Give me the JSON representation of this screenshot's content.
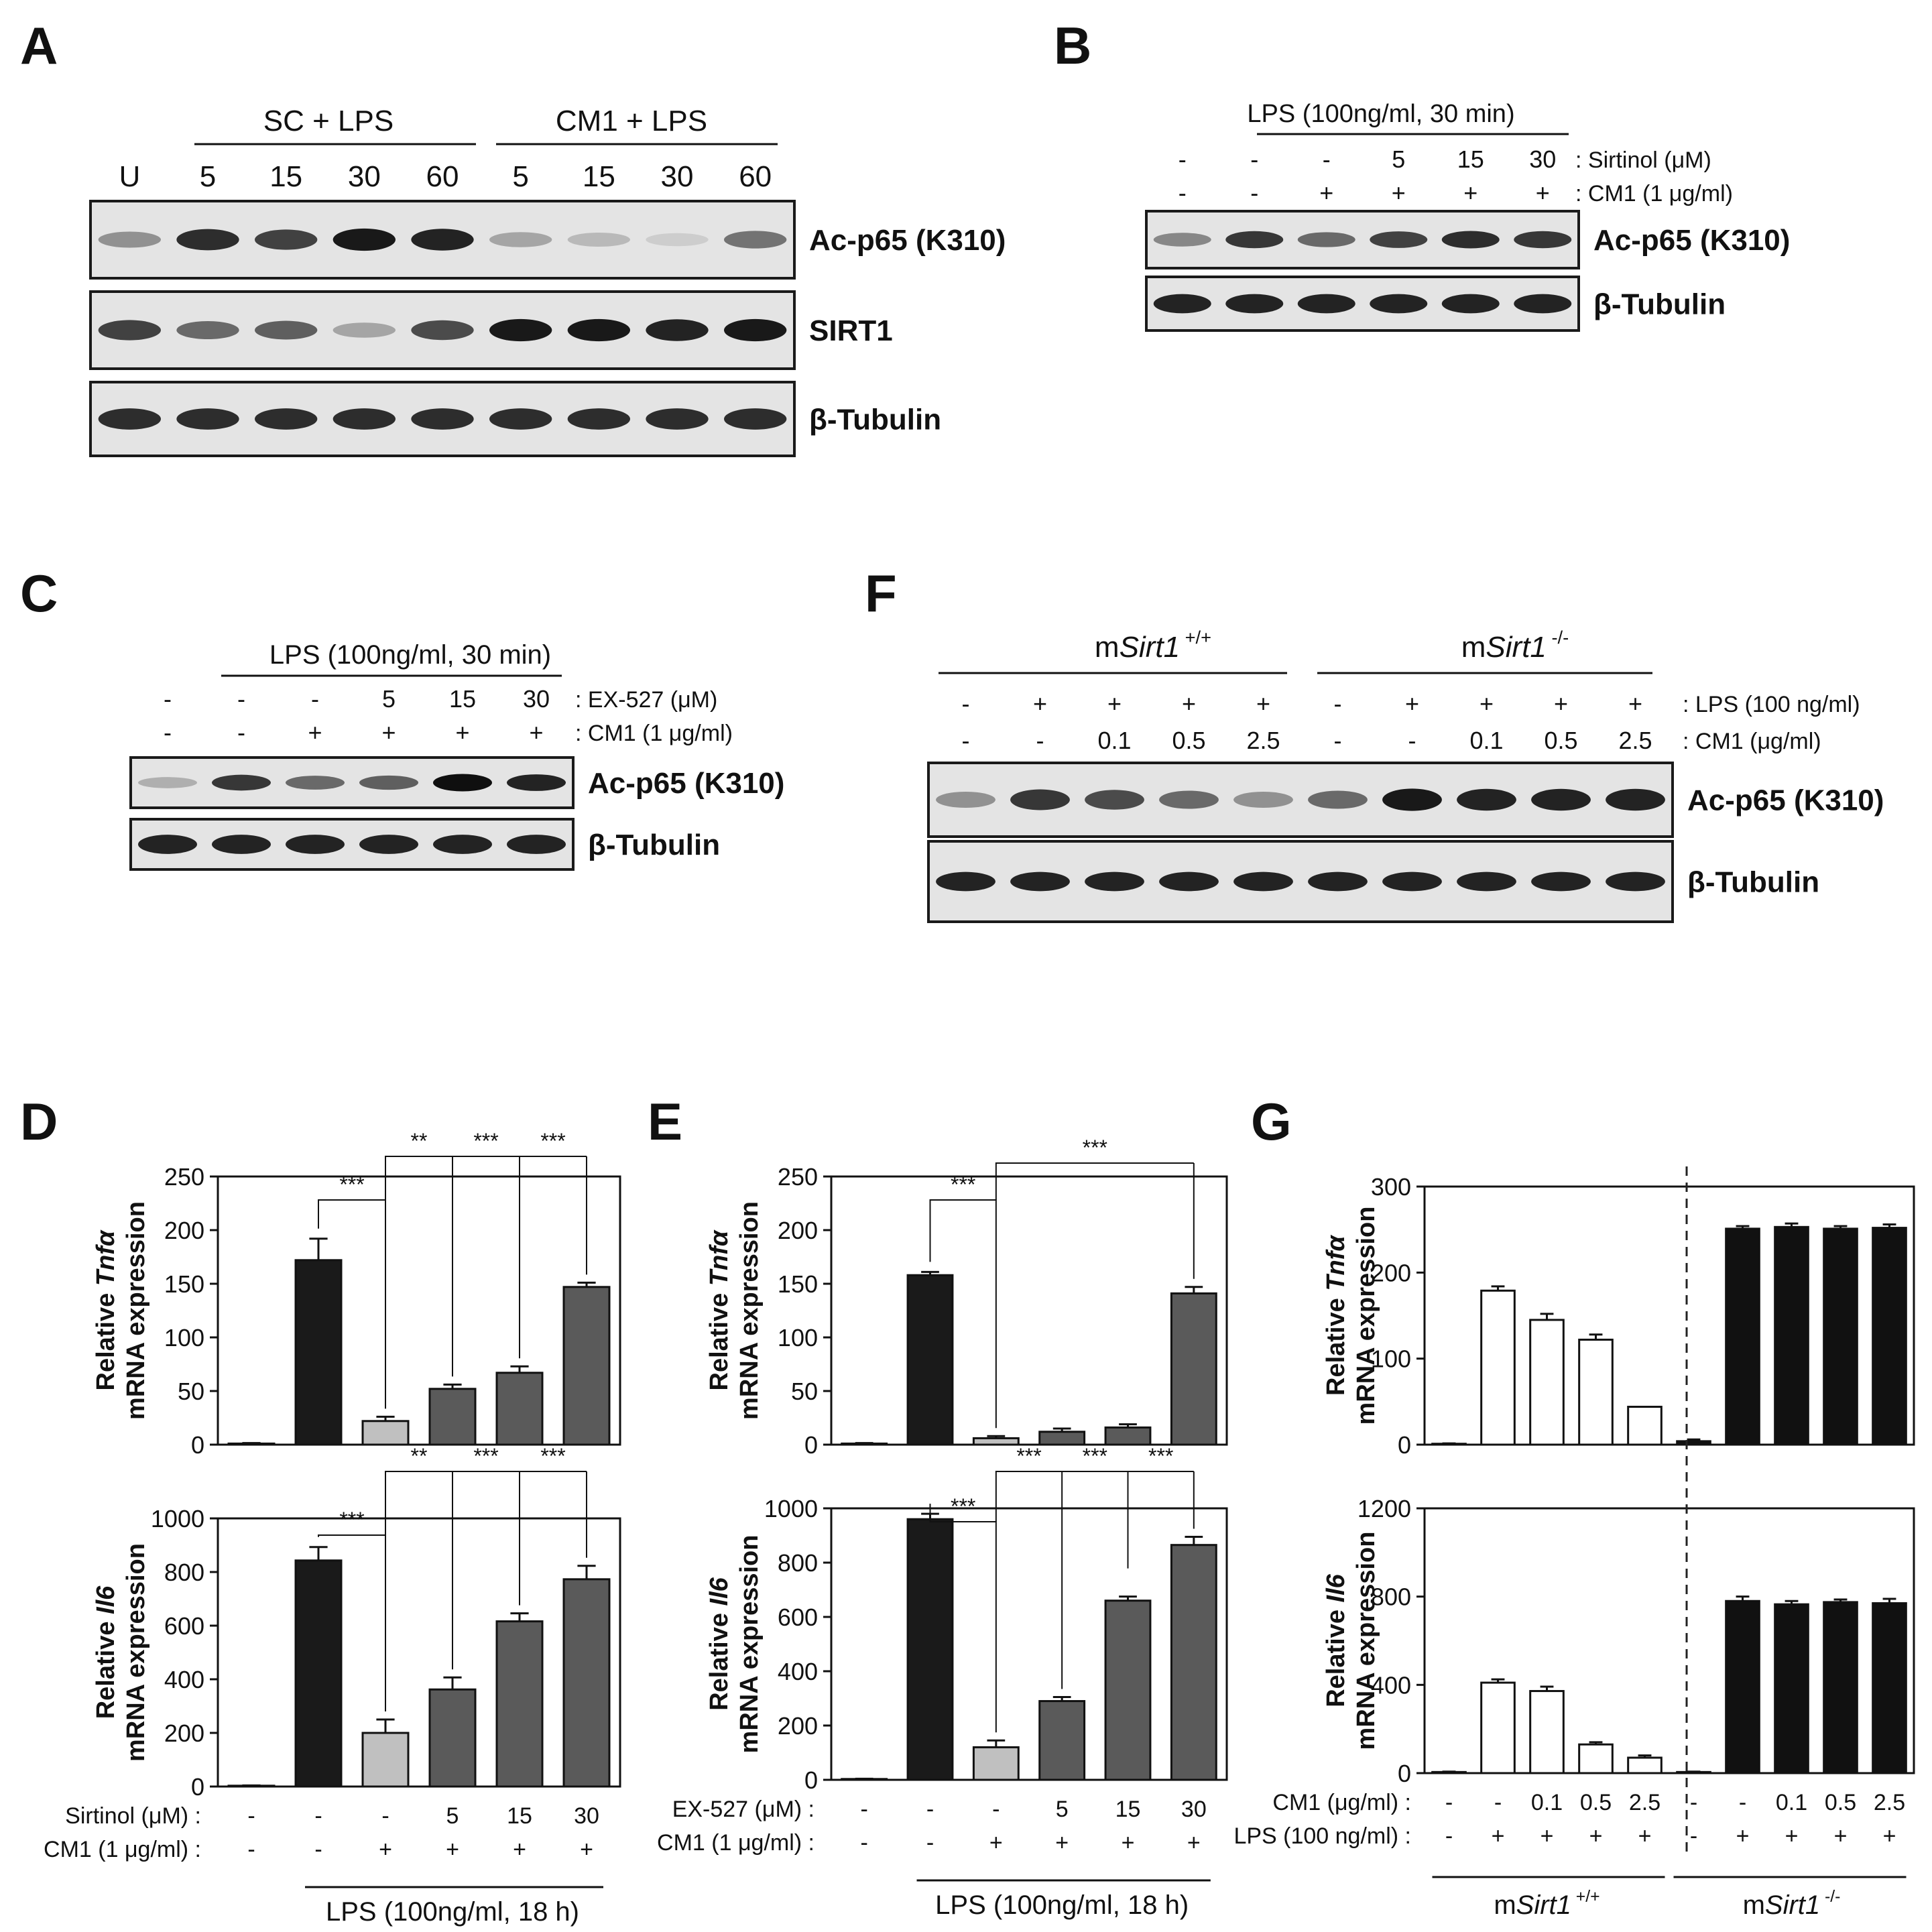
{
  "panels": {
    "A": {
      "letter": "A",
      "groups": [
        "SC + LPS",
        "CM1 + LPS"
      ],
      "lanes": [
        "U",
        "5",
        "15",
        "30",
        "60",
        "5",
        "15",
        "30",
        "60"
      ],
      "blots": [
        {
          "label": "Ac-p65 (K310)",
          "intensity": [
            0.35,
            0.85,
            0.75,
            0.95,
            0.9,
            0.25,
            0.15,
            0.05,
            0.5
          ]
        },
        {
          "label": "SIRT1",
          "intensity": [
            0.75,
            0.55,
            0.6,
            0.25,
            0.7,
            0.95,
            0.95,
            0.9,
            0.95
          ]
        },
        {
          "label": "β-Tubulin",
          "intensity": [
            0.85,
            0.85,
            0.85,
            0.85,
            0.85,
            0.85,
            0.85,
            0.85,
            0.85
          ]
        }
      ]
    },
    "B": {
      "letter": "B",
      "header": "LPS (100ng/ml, 30 min)",
      "rows": [
        {
          "label": ": Sirtinol (μM)",
          "values": [
            "-",
            "-",
            "-",
            "5",
            "15",
            "30"
          ]
        },
        {
          "label": ": CM1 (1 μg/ml)",
          "values": [
            "-",
            "-",
            "+",
            "+",
            "+",
            "+"
          ]
        }
      ],
      "blots": [
        {
          "label": "Ac-p65 (K310)",
          "intensity": [
            0.4,
            0.8,
            0.55,
            0.75,
            0.85,
            0.8
          ]
        },
        {
          "label": "β-Tubulin",
          "intensity": [
            0.9,
            0.9,
            0.9,
            0.9,
            0.9,
            0.9
          ]
        }
      ]
    },
    "C": {
      "letter": "C",
      "header": "LPS (100ng/ml, 30 min)",
      "rows": [
        {
          "label": ": EX-527 (μM)",
          "values": [
            "-",
            "-",
            "-",
            "5",
            "15",
            "30"
          ]
        },
        {
          "label": ": CM1 (1 μg/ml)",
          "values": [
            "-",
            "-",
            "+",
            "+",
            "+",
            "+"
          ]
        }
      ],
      "blots": [
        {
          "label": "Ac-p65 (K310)",
          "intensity": [
            0.2,
            0.8,
            0.55,
            0.6,
            1.0,
            0.9
          ]
        },
        {
          "label": "β-Tubulin",
          "intensity": [
            0.9,
            0.9,
            0.9,
            0.9,
            0.9,
            0.9
          ]
        }
      ]
    },
    "F": {
      "letter": "F",
      "groups": [
        {
          "prefix": "m",
          "gene": "Sirt1",
          "sup": " +/+"
        },
        {
          "prefix": "m",
          "gene": "Sirt1",
          "sup": " -/-"
        }
      ],
      "rows": [
        {
          "label": ": LPS (100 ng/ml)",
          "values": [
            "-",
            "+",
            "+",
            "+",
            "+",
            "-",
            "+",
            "+",
            "+",
            "+"
          ]
        },
        {
          "label": ": CM1 (μg/ml)",
          "values": [
            "-",
            "-",
            "0.1",
            "0.5",
            "2.5",
            "-",
            "-",
            "0.1",
            "0.5",
            "2.5"
          ]
        }
      ],
      "blots": [
        {
          "label": "Ac-p65 (K310)",
          "intensity": [
            0.35,
            0.8,
            0.7,
            0.55,
            0.35,
            0.55,
            0.95,
            0.9,
            0.9,
            0.9
          ]
        },
        {
          "label": "β-Tubulin",
          "intensity": [
            0.9,
            0.9,
            0.9,
            0.9,
            0.9,
            0.9,
            0.9,
            0.9,
            0.9,
            0.9
          ]
        }
      ]
    },
    "D": {
      "letter": "D"
    },
    "E": {
      "letter": "E"
    },
    "G": {
      "letter": "G"
    }
  },
  "chart_data": [
    {
      "panel": "D",
      "type": "bar",
      "ylabel_pre": "Relative ",
      "ylabel_gene": "Tnfα",
      "ylabel2": "mRNA expression",
      "ylim": [
        0,
        250
      ],
      "yticks": [
        0,
        50,
        100,
        150,
        200,
        250
      ],
      "values": [
        1,
        172,
        22,
        52,
        67,
        147
      ],
      "errors": [
        0.5,
        20,
        4,
        4,
        6,
        4
      ],
      "colors": [
        "#2b2b2b",
        "#1a1a1a",
        "#c0c0c0",
        "#5a5a5a",
        "#5a5a5a",
        "#5a5a5a"
      ],
      "significance": [
        "***",
        "**",
        "***",
        "***"
      ]
    },
    {
      "panel": "D",
      "type": "bar",
      "ylabel_pre": "Relative ",
      "ylabel_gene": "Il6",
      "ylabel2": "mRNA expression",
      "ylim": [
        0,
        1000
      ],
      "yticks": [
        0,
        200,
        400,
        600,
        800,
        1000
      ],
      "values": [
        3,
        843,
        200,
        362,
        616,
        773
      ],
      "errors": [
        1,
        50,
        50,
        45,
        30,
        50
      ],
      "colors": [
        "#2b2b2b",
        "#1a1a1a",
        "#c0c0c0",
        "#5a5a5a",
        "#5a5a5a",
        "#5a5a5a"
      ],
      "significance": [
        "***",
        "**",
        "***",
        "***"
      ],
      "xrows": [
        {
          "label": "Sirtinol (μM) :",
          "values": [
            "-",
            "-",
            "-",
            "5",
            "15",
            "30"
          ]
        },
        {
          "label": "CM1 (1 μg/ml) :",
          "values": [
            "-",
            "-",
            "+",
            "+",
            "+",
            "+"
          ]
        }
      ],
      "footer": "LPS (100ng/ml, 18 h)"
    },
    {
      "panel": "E",
      "type": "bar",
      "ylabel_pre": "Relative ",
      "ylabel_gene": "Tnfα",
      "ylabel2": "mRNA expression",
      "ylim": [
        0,
        250
      ],
      "yticks": [
        0,
        50,
        100,
        150,
        200,
        250
      ],
      "values": [
        1,
        158,
        6,
        12,
        16,
        141
      ],
      "errors": [
        0.5,
        3,
        2,
        3,
        3,
        6
      ],
      "colors": [
        "#2b2b2b",
        "#1a1a1a",
        "#c0c0c0",
        "#5a5a5a",
        "#5a5a5a",
        "#5a5a5a"
      ],
      "significance": [
        "***",
        "***"
      ]
    },
    {
      "panel": "E",
      "type": "bar",
      "ylabel_pre": "Relative ",
      "ylabel_gene": "Il6",
      "ylabel2": "mRNA expression",
      "ylim": [
        0,
        1000
      ],
      "yticks": [
        0,
        200,
        400,
        600,
        800,
        1000
      ],
      "values": [
        3,
        960,
        120,
        290,
        660,
        865
      ],
      "errors": [
        1,
        20,
        25,
        15,
        15,
        30
      ],
      "colors": [
        "#2b2b2b",
        "#1a1a1a",
        "#c0c0c0",
        "#5a5a5a",
        "#5a5a5a",
        "#5a5a5a"
      ],
      "significance": [
        "***",
        "***",
        "***",
        "***"
      ],
      "xrows": [
        {
          "label": "EX-527 (μM) :",
          "values": [
            "-",
            "-",
            "-",
            "5",
            "15",
            "30"
          ]
        },
        {
          "label": "CM1 (1 μg/ml) :",
          "values": [
            "-",
            "-",
            "+",
            "+",
            "+",
            "+"
          ]
        }
      ],
      "footer": "LPS (100ng/ml, 18 h)"
    },
    {
      "panel": "G",
      "type": "bar",
      "ylabel_pre": "Relative ",
      "ylabel_gene": "Tnfα",
      "ylabel2": "mRNA expression",
      "ylim": [
        0,
        300
      ],
      "yticks": [
        0,
        100,
        200,
        300
      ],
      "values": [
        1,
        179,
        145,
        122,
        44,
        4,
        251,
        253,
        251,
        252
      ],
      "errors": [
        0.5,
        5,
        7,
        6,
        0,
        2,
        3,
        4,
        3,
        4
      ],
      "colors": [
        "#ffffff",
        "#ffffff",
        "#ffffff",
        "#ffffff",
        "#ffffff",
        "#111111",
        "#111111",
        "#111111",
        "#111111",
        "#111111"
      ]
    },
    {
      "panel": "G",
      "type": "bar",
      "ylabel_pre": "Relative ",
      "ylabel_gene": "Il6",
      "ylabel2": "mRNA expression",
      "ylim": [
        0,
        1200
      ],
      "yticks": [
        0,
        400,
        800,
        1200
      ],
      "values": [
        5,
        410,
        372,
        130,
        70,
        5,
        780,
        765,
        775,
        770
      ],
      "errors": [
        2,
        15,
        20,
        10,
        10,
        2,
        20,
        15,
        12,
        20
      ],
      "colors": [
        "#ffffff",
        "#ffffff",
        "#ffffff",
        "#ffffff",
        "#ffffff",
        "#111111",
        "#111111",
        "#111111",
        "#111111",
        "#111111"
      ],
      "xrows": [
        {
          "label": "CM1 (μg/ml) :",
          "values": [
            "-",
            "-",
            "0.1",
            "0.5",
            "2.5",
            "-",
            "-",
            "0.1",
            "0.5",
            "2.5"
          ]
        },
        {
          "label": "LPS (100 ng/ml) :",
          "values": [
            "-",
            "+",
            "+",
            "+",
            "+",
            "-",
            "+",
            "+",
            "+",
            "+"
          ]
        }
      ],
      "groups": [
        {
          "prefix": "m",
          "gene": "Sirt1",
          "sup": " +/+"
        },
        {
          "prefix": "m",
          "gene": "Sirt1",
          "sup": " -/-"
        }
      ]
    }
  ]
}
